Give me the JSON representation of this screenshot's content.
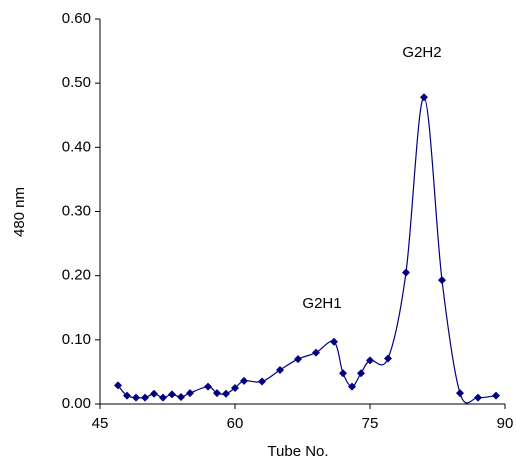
{
  "chart_data": {
    "type": "line",
    "xlabel": "Tube No.",
    "ylabel": "480 nm",
    "x": [
      47,
      48,
      49,
      50,
      51,
      52,
      53,
      54,
      55,
      57,
      58,
      59,
      60,
      61,
      63,
      65,
      67,
      69,
      71,
      72,
      73,
      74,
      75,
      77,
      79,
      81,
      83,
      85,
      87,
      89
    ],
    "values": [
      0.029,
      0.013,
      0.01,
      0.01,
      0.016,
      0.01,
      0.015,
      0.011,
      0.017,
      0.027,
      0.017,
      0.016,
      0.025,
      0.036,
      0.035,
      0.053,
      0.07,
      0.08,
      0.097,
      0.048,
      0.027,
      0.048,
      0.068,
      0.071,
      0.205,
      0.478,
      0.193,
      0.017,
      0.01,
      0.013
    ],
    "color": "#000080",
    "smooth": true,
    "markers": "diamond",
    "annotations": [
      "G2H1",
      "G2H2"
    ],
    "xlim": [
      45,
      90
    ],
    "xticks": [
      45,
      60,
      75,
      90
    ],
    "ylim": [
      0,
      0.6
    ],
    "yticks": [
      {
        "value": 0,
        "label": "0.00"
      },
      {
        "value": 0.1,
        "label": "0.10"
      },
      {
        "value": 0.2,
        "label": "0.20"
      },
      {
        "value": 0.3,
        "label": "0.30"
      },
      {
        "value": 0.4,
        "label": "0.40"
      },
      {
        "value": 0.5,
        "label": "0.50"
      },
      {
        "value": 0.6,
        "label": "0.60"
      }
    ],
    "grid": false
  }
}
